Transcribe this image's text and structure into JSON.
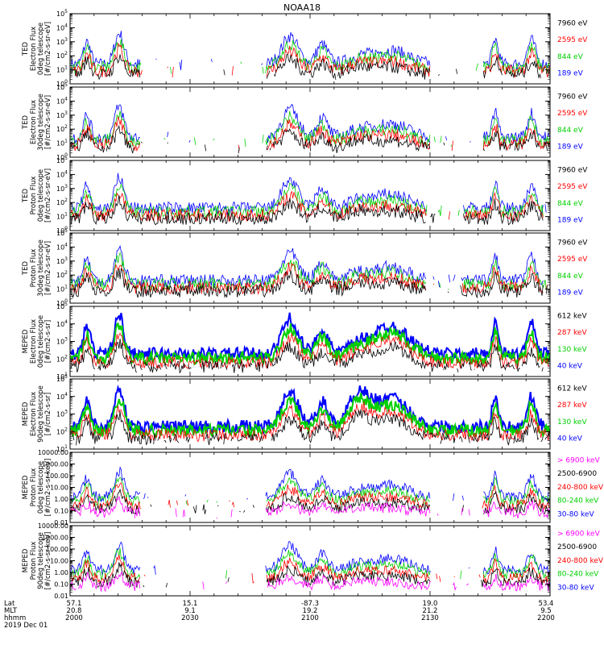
{
  "title": "NOAA18",
  "colors": {
    "blue": "#0000ff",
    "red": "#ff0000",
    "green": "#00d000",
    "black": "#000000",
    "magenta": "#ff00ff"
  },
  "xaxis": {
    "row_labels": [
      "Lat",
      "MLT",
      "hhmm",
      "2019 Dec 01"
    ],
    "ticks": [
      {
        "lat": "57.1",
        "mlt": "20.8",
        "hhmm": "2000"
      },
      {
        "lat": "15.1",
        "mlt": "9.1",
        "hhmm": "2030"
      },
      {
        "lat": "-87.3",
        "mlt": "19.2",
        "hhmm": "2100"
      },
      {
        "lat": "19.0",
        "mlt": "21.2",
        "hhmm": "2130"
      },
      {
        "lat": "53.4",
        "mlt": "9.5",
        "hhmm": "2200"
      }
    ]
  },
  "chart_data": [
    {
      "type": "line",
      "scale": "log",
      "ylim": [
        1,
        100000
      ],
      "ylabel": [
        "TED",
        "Electron Flux",
        "0deg telescope",
        "[#/cm2-s-sr-eV]"
      ],
      "ytick_labels": [
        "10^0",
        "10^1",
        "10^2",
        "10^3",
        "10^4",
        "10^5"
      ],
      "series": [
        {
          "name": "7960 eV",
          "color": "black"
        },
        {
          "name": "2595 eV",
          "color": "red"
        },
        {
          "name": "844 eV",
          "color": "green"
        },
        {
          "name": "189 eV",
          "color": "blue"
        }
      ]
    },
    {
      "type": "line",
      "scale": "log",
      "ylim": [
        1,
        100000
      ],
      "ylabel": [
        "TED",
        "Electron Flux",
        "30deg telescope",
        "[#/cm2-s-sr-eV]"
      ],
      "ytick_labels": [
        "10^0",
        "10^1",
        "10^2",
        "10^3",
        "10^4",
        "10^5"
      ],
      "series": [
        {
          "name": "7960 eV",
          "color": "black"
        },
        {
          "name": "2595 eV",
          "color": "red"
        },
        {
          "name": "844 eV",
          "color": "green"
        },
        {
          "name": "189 eV",
          "color": "blue"
        }
      ]
    },
    {
      "type": "line",
      "scale": "log",
      "ylim": [
        1,
        100000
      ],
      "ylabel": [
        "TED",
        "Proton Flux",
        "0deg telescope",
        "[#/cm2-s-sr-eV]"
      ],
      "ytick_labels": [
        "10^0",
        "10^1",
        "10^2",
        "10^3",
        "10^4",
        "10^5"
      ],
      "series": [
        {
          "name": "7960 eV",
          "color": "black"
        },
        {
          "name": "2595 eV",
          "color": "red"
        },
        {
          "name": "844 eV",
          "color": "green"
        },
        {
          "name": "189 eV",
          "color": "blue"
        }
      ]
    },
    {
      "type": "line",
      "scale": "log",
      "ylim": [
        1,
        100000
      ],
      "ylabel": [
        "TED",
        "Proton Flux",
        "30deg telescope",
        "[#/cm2-s-sr-eV]"
      ],
      "ytick_labels": [
        "10^0",
        "10^1",
        "10^2",
        "10^3",
        "10^4",
        "10^5"
      ],
      "series": [
        {
          "name": "7960 eV",
          "color": "black"
        },
        {
          "name": "2595 eV",
          "color": "red"
        },
        {
          "name": "844 eV",
          "color": "green"
        },
        {
          "name": "189 eV",
          "color": "blue"
        }
      ]
    },
    {
      "type": "line",
      "scale": "log",
      "ylim": [
        10,
        100000
      ],
      "ylabel": [
        "MEPED",
        "Electron Flux",
        "0deg telescope",
        "[#/cm2-s-sr]"
      ],
      "ytick_labels": [
        "10^1",
        "10^2",
        "10^3",
        "10^4",
        "10^5"
      ],
      "series": [
        {
          "name": "612 keV",
          "color": "black"
        },
        {
          "name": "287 keV",
          "color": "red"
        },
        {
          "name": "130 keV",
          "color": "green"
        },
        {
          "name": "40 keV",
          "color": "blue"
        }
      ]
    },
    {
      "type": "line",
      "scale": "log",
      "ylim": [
        10,
        100000
      ],
      "ylabel": [
        "MEPED",
        "Electron Flux",
        "90deg telescope",
        "[#/cm2-s-sr]"
      ],
      "ytick_labels": [
        "10^1",
        "10^2",
        "10^3",
        "10^4",
        "10^5"
      ],
      "series": [
        {
          "name": "612 keV",
          "color": "black"
        },
        {
          "name": "287 keV",
          "color": "red"
        },
        {
          "name": "130 keV",
          "color": "green"
        },
        {
          "name": "40 keV",
          "color": "blue"
        }
      ]
    },
    {
      "type": "line",
      "scale": "log",
      "ylim": [
        0.01,
        10000
      ],
      "ylabel": [
        "MEPED",
        "Proton Flux",
        "0deg telescope",
        "[#/cm2-s-sr-keV]"
      ],
      "ytick_labels": [
        "0.01",
        "0.10",
        "1.00",
        "10.00",
        "100.00",
        "1000.00",
        "10000.00"
      ],
      "series": [
        {
          "name": "> 6900 keV",
          "color": "magenta"
        },
        {
          "name": "2500-6900",
          "color": "black"
        },
        {
          "name": "240-800 keV",
          "color": "red"
        },
        {
          "name": "80-240 keV",
          "color": "green"
        },
        {
          "name": "30-80 keV",
          "color": "blue"
        }
      ]
    },
    {
      "type": "line",
      "scale": "log",
      "ylim": [
        0.01,
        10000
      ],
      "ylabel": [
        "MEPED",
        "Proton Flux",
        "90deg telescope",
        "[#/cm2-s-sr-keV]"
      ],
      "ytick_labels": [
        "0.01",
        "0.10",
        "1.00",
        "10.00",
        "100.00",
        "1000.00",
        "10000.00"
      ],
      "series": [
        {
          "name": "> 6900 keV",
          "color": "magenta"
        },
        {
          "name": "2500-6900",
          "color": "black"
        },
        {
          "name": "240-800 keV",
          "color": "red"
        },
        {
          "name": "80-240 keV",
          "color": "green"
        },
        {
          "name": "30-80 keV",
          "color": "blue"
        }
      ]
    }
  ]
}
